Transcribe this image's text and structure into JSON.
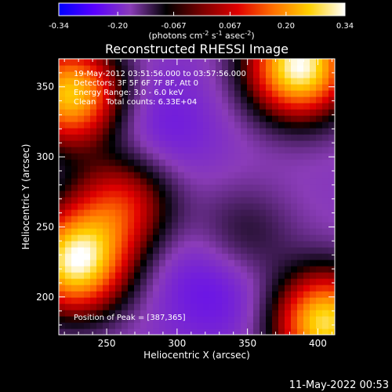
{
  "chart_data": {
    "type": "heatmap",
    "title": "Reconstructed RHESSI Image",
    "xlabel": "Heliocentric X (arcsec)",
    "ylabel": "Heliocentric Y (arcsec)",
    "xlim": [
      216,
      412
    ],
    "ylim": [
      173,
      370
    ],
    "xticks": [
      250,
      300,
      350,
      400
    ],
    "yticks": [
      200,
      250,
      300,
      350
    ],
    "colorbar": {
      "range": [
        -0.34,
        0.34
      ],
      "ticks": [
        "-0.34",
        "-0.20",
        "-0.067",
        "0.067",
        "0.20",
        "0.34"
      ],
      "tick_values": [
        -0.34,
        -0.2,
        -0.067,
        0.067,
        0.2,
        0.34
      ],
      "units_prefix": "(photons cm",
      "units_exp1": "-2",
      "units_mid": " s",
      "units_exp2": "-1",
      "units_mid2": " asec",
      "units_exp3": "-2",
      "units_suffix": ")",
      "colormap": [
        "#0000ff",
        "#5a00ff",
        "#8a3cb8",
        "#000000",
        "#7a0000",
        "#e00000",
        "#ff7000",
        "#ffd000",
        "#ffffff"
      ]
    },
    "annotations": [
      "19-May-2012 03:51:56.000 to 03:57:56.000",
      "Detectors: 3F 5F 6F 7F 8F, Att 0",
      "Energy Range: 3.0 - 6.0 keV",
      "Clean    Total counts: 6.33E+04"
    ],
    "peak_label": "Position of Peak = [387,365]",
    "features": [
      {
        "kind": "source",
        "x": 387,
        "y": 365,
        "value": 0.34
      },
      {
        "kind": "source",
        "x": 228,
        "y": 225,
        "value": 0.32
      },
      {
        "kind": "source",
        "x": 225,
        "y": 345,
        "value": 0.28
      },
      {
        "kind": "source",
        "x": 405,
        "y": 182,
        "value": 0.3
      },
      {
        "kind": "source",
        "x": 262,
        "y": 268,
        "value": 0.12
      },
      {
        "kind": "source",
        "x": 345,
        "y": 240,
        "value": 0.02
      },
      {
        "kind": "minimum",
        "x": 330,
        "y": 215,
        "value": -0.22
      },
      {
        "kind": "minimum",
        "x": 285,
        "y": 320,
        "value": -0.18
      }
    ]
  },
  "footer": {
    "date": "11-May-2022 00:53"
  }
}
